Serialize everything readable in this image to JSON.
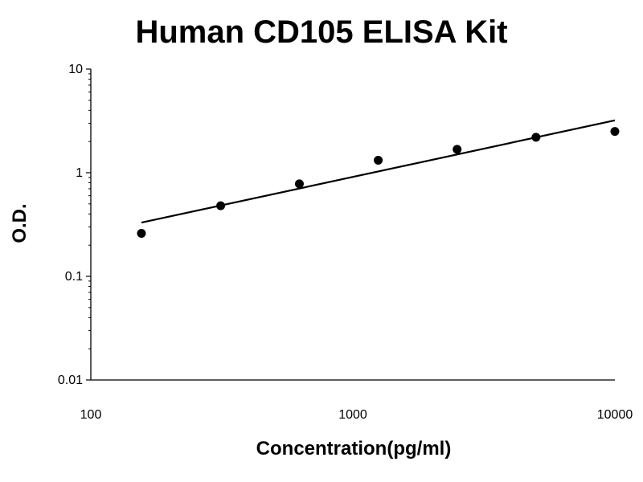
{
  "chart_data": {
    "type": "scatter",
    "title": "Human CD105 ELISA Kit",
    "xlabel": "Concentration(pg/ml)",
    "ylabel": "O.D.",
    "x_scale": "log",
    "y_scale": "log",
    "xlim": [
      100,
      10000
    ],
    "ylim": [
      0.01,
      10
    ],
    "x_ticks": [
      "100",
      "1000",
      "10000"
    ],
    "y_ticks": [
      "0.01",
      "0.1",
      "1",
      "10"
    ],
    "grid": false,
    "legend": "none",
    "series": [
      {
        "x": [
          156,
          313,
          625,
          1250,
          2500,
          5000,
          10000
        ],
        "y": [
          0.26,
          0.48,
          0.78,
          1.32,
          1.68,
          2.2,
          2.5
        ]
      }
    ],
    "trendline": {
      "type": "power",
      "x": [
        156,
        10000
      ],
      "y": [
        0.33,
        3.2
      ]
    }
  }
}
